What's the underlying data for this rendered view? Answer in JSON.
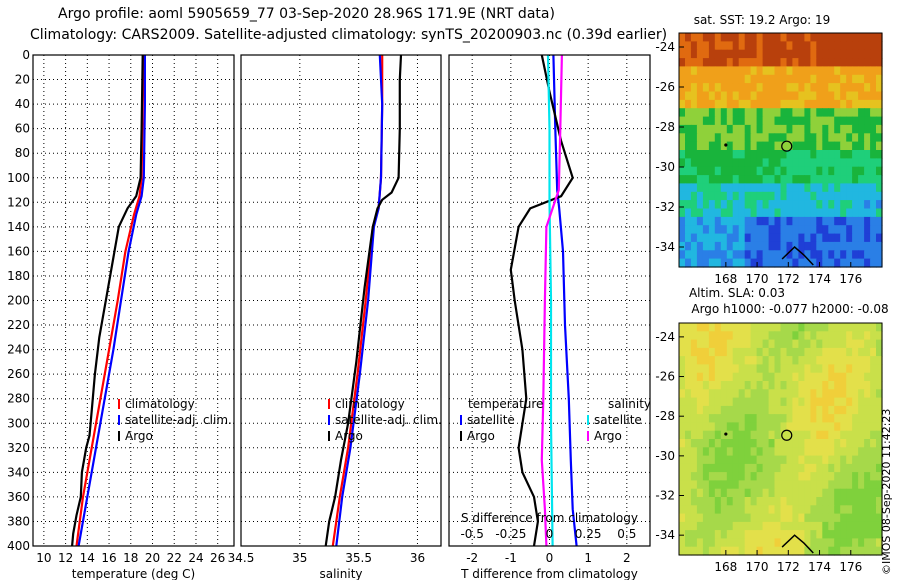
{
  "header": {
    "title_line1": "Argo profile: aoml 5905659_77 03-Sep-2020 28.96S 171.9E (NRT data)",
    "title_line2": "Climatology: CARS2009. Satellite-adjusted climatology: synTS_20200903.nc (0.39d earlier)"
  },
  "credit": "©IMOS 08-Sep-2020 11:42:23",
  "colors": {
    "climatology": "#ff0000",
    "satellite": "#0000ff",
    "argo": "#000000",
    "t_sat": "#0000ff",
    "s_sat": "#00e5ee",
    "s_argo": "#ff00ff"
  },
  "chart_data": [
    {
      "type": "line",
      "id": "temperature",
      "xlabel": "temperature (deg C)",
      "ylabel": "depth",
      "xlim": [
        9,
        27.5
      ],
      "ylim": [
        400,
        0
      ],
      "xticks": [
        10,
        12,
        14,
        16,
        18,
        20,
        22,
        24,
        26
      ],
      "yticks": [
        0,
        20,
        40,
        60,
        80,
        100,
        120,
        140,
        160,
        180,
        200,
        220,
        240,
        260,
        280,
        300,
        320,
        340,
        360,
        380,
        400
      ],
      "legend": [
        "climatology",
        "satellite-adj. clim.",
        "Argo"
      ],
      "series": [
        {
          "name": "climatology",
          "color": "#ff0000",
          "points": [
            [
              19.2,
              0
            ],
            [
              19.1,
              40
            ],
            [
              19.0,
              100
            ],
            [
              18.8,
              115
            ],
            [
              18.3,
              130
            ],
            [
              17.5,
              160
            ],
            [
              16.8,
              200
            ],
            [
              16.0,
              240
            ],
            [
              15.2,
              280
            ],
            [
              14.4,
              320
            ],
            [
              13.6,
              360
            ],
            [
              13.0,
              400
            ]
          ]
        },
        {
          "name": "satellite-adj. clim.",
          "color": "#0000ff",
          "points": [
            [
              19.3,
              0
            ],
            [
              19.3,
              40
            ],
            [
              19.2,
              100
            ],
            [
              19.0,
              115
            ],
            [
              18.5,
              130
            ],
            [
              17.8,
              160
            ],
            [
              17.1,
              200
            ],
            [
              16.4,
              240
            ],
            [
              15.6,
              280
            ],
            [
              14.8,
              320
            ],
            [
              14.0,
              360
            ],
            [
              13.2,
              400
            ]
          ]
        },
        {
          "name": "Argo",
          "color": "#000000",
          "points": [
            [
              19.1,
              0
            ],
            [
              19.0,
              60
            ],
            [
              18.9,
              100
            ],
            [
              18.5,
              115
            ],
            [
              17.7,
              125
            ],
            [
              16.9,
              140
            ],
            [
              16.4,
              165
            ],
            [
              15.8,
              195
            ],
            [
              15.1,
              230
            ],
            [
              14.7,
              260
            ],
            [
              14.4,
              290
            ],
            [
              14.2,
              310
            ],
            [
              13.9,
              320
            ],
            [
              13.5,
              340
            ],
            [
              13.4,
              360
            ],
            [
              13.0,
              375
            ],
            [
              12.7,
              390
            ],
            [
              12.6,
              400
            ]
          ]
        }
      ]
    },
    {
      "type": "line",
      "id": "salinity",
      "xlabel": "salinity",
      "ylabel": "depth",
      "xlim": [
        34.5,
        36.2
      ],
      "ylim": [
        400,
        0
      ],
      "xticks": [
        34.5,
        35,
        35.5,
        36
      ],
      "xticklabels": [
        "34.5",
        "35",
        "35.5",
        "36"
      ],
      "legend": [
        "climatology",
        "satellite-adj. clim.",
        "Argo"
      ],
      "series": [
        {
          "name": "climatology",
          "color": "#ff0000",
          "points": [
            [
              35.7,
              0
            ],
            [
              35.7,
              40
            ],
            [
              35.69,
              100
            ],
            [
              35.67,
              125
            ],
            [
              35.62,
              140
            ],
            [
              35.56,
              200
            ],
            [
              35.49,
              260
            ],
            [
              35.41,
              320
            ],
            [
              35.34,
              360
            ],
            [
              35.28,
              400
            ]
          ]
        },
        {
          "name": "satellite-adj. clim.",
          "color": "#0000ff",
          "points": [
            [
              35.68,
              0
            ],
            [
              35.7,
              40
            ],
            [
              35.69,
              100
            ],
            [
              35.67,
              125
            ],
            [
              35.63,
              140
            ],
            [
              35.58,
              200
            ],
            [
              35.51,
              260
            ],
            [
              35.43,
              320
            ],
            [
              35.36,
              360
            ],
            [
              35.31,
              400
            ]
          ]
        },
        {
          "name": "Argo",
          "color": "#000000",
          "points": [
            [
              35.86,
              0
            ],
            [
              35.85,
              20
            ],
            [
              35.85,
              60
            ],
            [
              35.84,
              100
            ],
            [
              35.78,
              112
            ],
            [
              35.7,
              118
            ],
            [
              35.66,
              125
            ],
            [
              35.62,
              140
            ],
            [
              35.55,
              190
            ],
            [
              35.48,
              250
            ],
            [
              35.41,
              300
            ],
            [
              35.35,
              330
            ],
            [
              35.3,
              360
            ],
            [
              35.25,
              380
            ],
            [
              35.22,
              400
            ]
          ]
        }
      ]
    },
    {
      "type": "line",
      "id": "difference",
      "xlabel": "T difference from climatology",
      "x2label": "S difference from climatology",
      "ylabel": "depth",
      "xlim": [
        -2.6,
        2.6
      ],
      "ylim": [
        400,
        0
      ],
      "xticks": [
        -2,
        -1,
        0,
        1,
        2
      ],
      "x2lim": [
        -0.65,
        0.65
      ],
      "x2ticks": [
        -0.5,
        -0.25,
        0,
        0.25,
        0.5
      ],
      "x2ticklabels": [
        "-0.5",
        "-0.25",
        "0",
        "0.25",
        "0.5"
      ],
      "legend": {
        "temperature_header": "temperature",
        "salinity_header": "salinity",
        "t_satellite": "satellite",
        "t_argo": "Argo",
        "s_satellite": "satellite",
        "s_argo": "Argo"
      },
      "series": [
        {
          "name": "T satellite",
          "axis": "T",
          "color": "#0000ff",
          "points": [
            [
              0.1,
              0
            ],
            [
              0.15,
              60
            ],
            [
              0.2,
              110
            ],
            [
              0.25,
              125
            ],
            [
              0.35,
              160
            ],
            [
              0.4,
              220
            ],
            [
              0.5,
              280
            ],
            [
              0.55,
              330
            ],
            [
              0.6,
              370
            ],
            [
              0.7,
              400
            ]
          ]
        },
        {
          "name": "T Argo",
          "axis": "T",
          "color": "#000000",
          "points": [
            [
              -0.2,
              0
            ],
            [
              0.0,
              30
            ],
            [
              0.3,
              70
            ],
            [
              0.6,
              100
            ],
            [
              0.3,
              115
            ],
            [
              -0.5,
              125
            ],
            [
              -0.8,
              140
            ],
            [
              -1.0,
              175
            ],
            [
              -0.9,
              200
            ],
            [
              -0.7,
              240
            ],
            [
              -0.6,
              280
            ],
            [
              -0.8,
              320
            ],
            [
              -0.7,
              340
            ],
            [
              -0.4,
              360
            ],
            [
              -0.3,
              380
            ],
            [
              -0.4,
              400
            ]
          ]
        },
        {
          "name": "S satellite",
          "axis": "S",
          "color": "#00e5ee",
          "points": [
            [
              -0.01,
              0
            ],
            [
              0.0,
              60
            ],
            [
              0.0,
              120
            ],
            [
              0.01,
              200
            ],
            [
              0.01,
              300
            ],
            [
              0.02,
              400
            ]
          ]
        },
        {
          "name": "S Argo",
          "axis": "S",
          "color": "#ff00ff",
          "points": [
            [
              0.08,
              0
            ],
            [
              0.07,
              60
            ],
            [
              0.06,
              110
            ],
            [
              0.02,
              125
            ],
            [
              -0.02,
              140
            ],
            [
              -0.03,
              200
            ],
            [
              -0.04,
              280
            ],
            [
              -0.05,
              330
            ],
            [
              -0.03,
              370
            ],
            [
              -0.02,
              400
            ]
          ]
        }
      ]
    }
  ],
  "maps": [
    {
      "id": "sst",
      "title": "sat. SST: 19.2 Argo: 19",
      "xticks": [
        168,
        170,
        172,
        174,
        176
      ],
      "yticks": [
        -24,
        -26,
        -28,
        -30,
        -32,
        -34
      ],
      "xlim": [
        165,
        178
      ],
      "ylim": [
        -35,
        -23.3
      ],
      "marker": [
        171.9,
        -28.96
      ]
    },
    {
      "id": "sla",
      "title_line1": "Altim. SLA: 0.03",
      "title_line2": "Argo h1000: -0.077 h2000: -0.08",
      "xticks": [
        168,
        170,
        172,
        174,
        176
      ],
      "yticks": [
        -24,
        -26,
        -28,
        -30,
        -32,
        -34
      ],
      "xlim": [
        165,
        178
      ],
      "ylim": [
        -35,
        -23.3
      ],
      "marker": [
        171.9,
        -28.96
      ]
    }
  ]
}
